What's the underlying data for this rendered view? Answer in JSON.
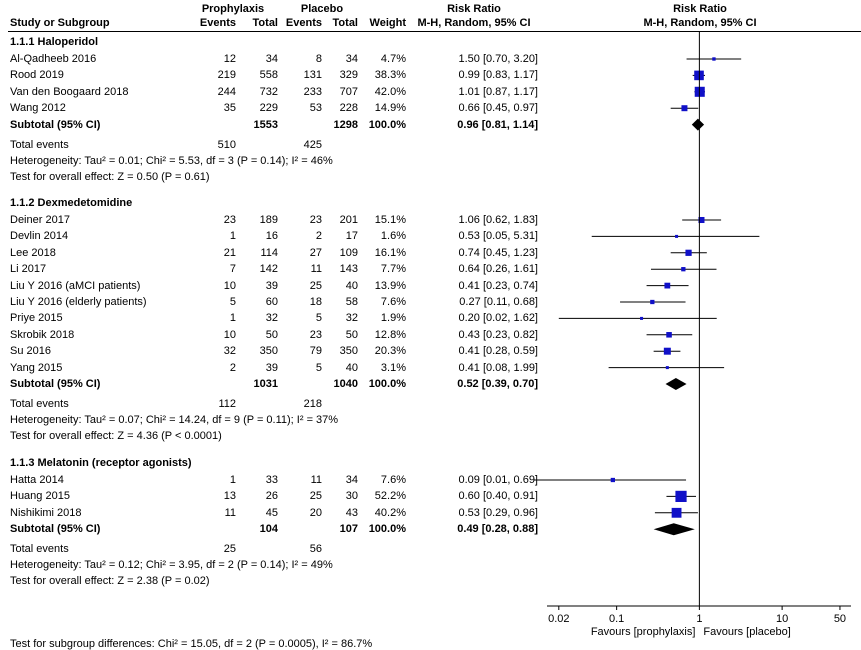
{
  "header": {
    "study_label": "Study or Subgroup",
    "group1": "Prophylaxis",
    "group2": "Placebo",
    "events": "Events",
    "total": "Total",
    "weight": "Weight",
    "rr_title": "Risk Ratio",
    "rr_method": "M-H, Random, 95% CI",
    "plot_title": "Risk Ratio",
    "plot_method": "M-H, Random, 95% CI"
  },
  "groups": [
    {
      "title": "1.1.1 Haloperidol",
      "studies": [
        {
          "name": "Al-Qadheeb 2016",
          "e1": "12",
          "n1": "34",
          "e2": "8",
          "n2": "34",
          "weight": "4.7%",
          "ci_text": "1.50 [0.70, 3.20]",
          "rr": 1.5,
          "lo": 0.7,
          "hi": 3.2,
          "w": 4.7
        },
        {
          "name": "Rood 2019",
          "e1": "219",
          "n1": "558",
          "e2": "131",
          "n2": "329",
          "weight": "38.3%",
          "ci_text": "0.99 [0.83, 1.17]",
          "rr": 0.99,
          "lo": 0.83,
          "hi": 1.17,
          "w": 38.3
        },
        {
          "name": "Van den Boogaard 2018",
          "e1": "244",
          "n1": "732",
          "e2": "233",
          "n2": "707",
          "weight": "42.0%",
          "ci_text": "1.01 [0.87, 1.17]",
          "rr": 1.01,
          "lo": 0.87,
          "hi": 1.17,
          "w": 42.0
        },
        {
          "name": "Wang 2012",
          "e1": "35",
          "n1": "229",
          "e2": "53",
          "n2": "228",
          "weight": "14.9%",
          "ci_text": "0.66 [0.45, 0.97]",
          "rr": 0.66,
          "lo": 0.45,
          "hi": 0.97,
          "w": 14.9
        }
      ],
      "subtotal": {
        "label": "Subtotal (95% CI)",
        "n1": "1553",
        "n2": "1298",
        "weight": "100.0%",
        "ci_text": "0.96 [0.81, 1.14]",
        "rr": 0.96,
        "lo": 0.81,
        "hi": 1.14
      },
      "total_events": {
        "label": "Total events",
        "e1": "510",
        "e2": "425"
      },
      "heterogeneity": "Heterogeneity: Tau² = 0.01; Chi² = 5.53, df = 3 (P = 0.14); I² = 46%",
      "overall": "Test for overall effect: Z = 0.50 (P = 0.61)"
    },
    {
      "title": "1.1.2 Dexmedetomidine",
      "studies": [
        {
          "name": "Deiner 2017",
          "e1": "23",
          "n1": "189",
          "e2": "23",
          "n2": "201",
          "weight": "15.1%",
          "ci_text": "1.06 [0.62, 1.83]",
          "rr": 1.06,
          "lo": 0.62,
          "hi": 1.83,
          "w": 15.1
        },
        {
          "name": "Devlin 2014",
          "e1": "1",
          "n1": "16",
          "e2": "2",
          "n2": "17",
          "weight": "1.6%",
          "ci_text": "0.53 [0.05, 5.31]",
          "rr": 0.53,
          "lo": 0.05,
          "hi": 5.31,
          "w": 1.6
        },
        {
          "name": "Lee 2018",
          "e1": "21",
          "n1": "114",
          "e2": "27",
          "n2": "109",
          "weight": "16.1%",
          "ci_text": "0.74 [0.45, 1.23]",
          "rr": 0.74,
          "lo": 0.45,
          "hi": 1.23,
          "w": 16.1
        },
        {
          "name": "Li 2017",
          "e1": "7",
          "n1": "142",
          "e2": "11",
          "n2": "143",
          "weight": "7.7%",
          "ci_text": "0.64 [0.26, 1.61]",
          "rr": 0.64,
          "lo": 0.26,
          "hi": 1.61,
          "w": 7.7
        },
        {
          "name": "Liu Y 2016 (aMCI patients)",
          "e1": "10",
          "n1": "39",
          "e2": "25",
          "n2": "40",
          "weight": "13.9%",
          "ci_text": "0.41 [0.23, 0.74]",
          "rr": 0.41,
          "lo": 0.23,
          "hi": 0.74,
          "w": 13.9
        },
        {
          "name": "Liu Y 2016 (elderly patients)",
          "e1": "5",
          "n1": "60",
          "e2": "18",
          "n2": "58",
          "weight": "7.6%",
          "ci_text": "0.27 [0.11, 0.68]",
          "rr": 0.27,
          "lo": 0.11,
          "hi": 0.68,
          "w": 7.6
        },
        {
          "name": "Priye 2015",
          "e1": "1",
          "n1": "32",
          "e2": "5",
          "n2": "32",
          "weight": "1.9%",
          "ci_text": "0.20 [0.02, 1.62]",
          "rr": 0.2,
          "lo": 0.02,
          "hi": 1.62,
          "w": 1.9
        },
        {
          "name": "Skrobik 2018",
          "e1": "10",
          "n1": "50",
          "e2": "23",
          "n2": "50",
          "weight": "12.8%",
          "ci_text": "0.43 [0.23, 0.82]",
          "rr": 0.43,
          "lo": 0.23,
          "hi": 0.82,
          "w": 12.8
        },
        {
          "name": "Su 2016",
          "e1": "32",
          "n1": "350",
          "e2": "79",
          "n2": "350",
          "weight": "20.3%",
          "ci_text": "0.41 [0.28, 0.59]",
          "rr": 0.41,
          "lo": 0.28,
          "hi": 0.59,
          "w": 20.3
        },
        {
          "name": "Yang 2015",
          "e1": "2",
          "n1": "39",
          "e2": "5",
          "n2": "40",
          "weight": "3.1%",
          "ci_text": "0.41 [0.08, 1.99]",
          "rr": 0.41,
          "lo": 0.08,
          "hi": 1.99,
          "w": 3.1
        }
      ],
      "subtotal": {
        "label": "Subtotal (95% CI)",
        "n1": "1031",
        "n2": "1040",
        "weight": "100.0%",
        "ci_text": "0.52 [0.39, 0.70]",
        "rr": 0.52,
        "lo": 0.39,
        "hi": 0.7
      },
      "total_events": {
        "label": "Total events",
        "e1": "112",
        "e2": "218"
      },
      "heterogeneity": "Heterogeneity: Tau² = 0.07; Chi² = 14.24, df = 9 (P = 0.11); I² = 37%",
      "overall": "Test for overall effect: Z = 4.36 (P < 0.0001)"
    },
    {
      "title": "1.1.3 Melatonin (receptor agonists)",
      "studies": [
        {
          "name": "Hatta 2014",
          "e1": "1",
          "n1": "33",
          "e2": "11",
          "n2": "34",
          "weight": "7.6%",
          "ci_text": "0.09 [0.01, 0.69]",
          "rr": 0.09,
          "lo": 0.01,
          "hi": 0.69,
          "w": 7.6
        },
        {
          "name": "Huang 2015",
          "e1": "13",
          "n1": "26",
          "e2": "25",
          "n2": "30",
          "weight": "52.2%",
          "ci_text": "0.60 [0.40, 0.91]",
          "rr": 0.6,
          "lo": 0.4,
          "hi": 0.91,
          "w": 52.2
        },
        {
          "name": "Nishikimi 2018",
          "e1": "11",
          "n1": "45",
          "e2": "20",
          "n2": "43",
          "weight": "40.2%",
          "ci_text": "0.53 [0.29, 0.96]",
          "rr": 0.53,
          "lo": 0.29,
          "hi": 0.96,
          "w": 40.2
        }
      ],
      "subtotal": {
        "label": "Subtotal (95% CI)",
        "n1": "104",
        "n2": "107",
        "weight": "100.0%",
        "ci_text": "0.49 [0.28, 0.88]",
        "rr": 0.49,
        "lo": 0.28,
        "hi": 0.88
      },
      "total_events": {
        "label": "Total events",
        "e1": "25",
        "e2": "56"
      },
      "heterogeneity": "Heterogeneity: Tau² = 0.12; Chi² = 3.95, df = 2 (P = 0.14); I² = 49%",
      "overall": "Test for overall effect: Z = 2.38 (P = 0.02)"
    }
  ],
  "footer": "Test for subgroup differences: Chi² = 15.05, df = 2 (P = 0.0005), I² = 86.7%",
  "chart_data": {
    "type": "scatter",
    "subtype": "forest-plot",
    "x_scale": "log",
    "x_ticks": [
      {
        "value": 0.02,
        "label": "0.02"
      },
      {
        "value": 0.1,
        "label": "0.1"
      },
      {
        "value": 1,
        "label": "1"
      },
      {
        "value": 10,
        "label": "10"
      },
      {
        "value": 50,
        "label": "50"
      }
    ],
    "xlim": [
      0.0144,
      68
    ],
    "favours_left": "Favours [prophylaxis]",
    "favours_right": "Favours [placebo]",
    "reference_line": 1,
    "colors": {
      "study_marker": "#1010c8",
      "diamond": "#000000",
      "ci_line": "#000000"
    }
  }
}
